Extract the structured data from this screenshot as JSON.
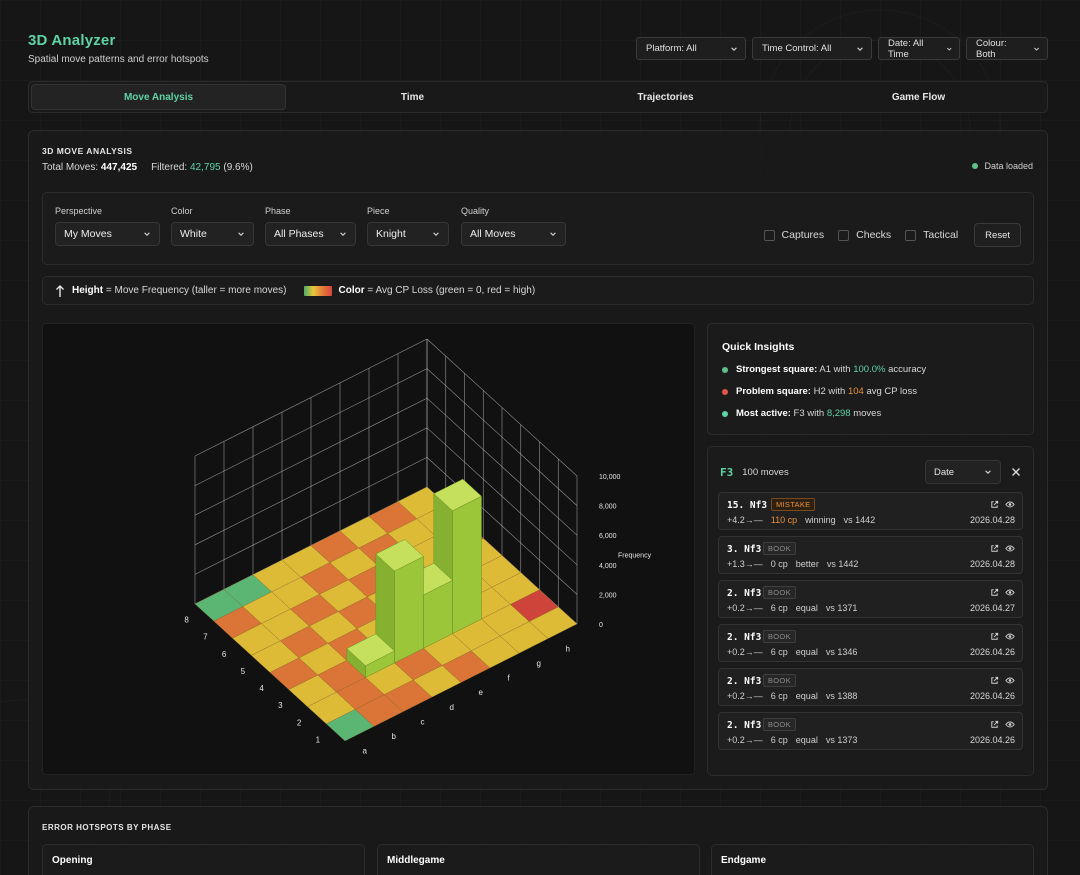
{
  "app": {
    "title": "3D Analyzer",
    "subtitle": "Spatial move patterns and error hotspots"
  },
  "filters": [
    {
      "label": "Platform: All"
    },
    {
      "label": "Time Control: All"
    },
    {
      "label": "Date: All Time"
    },
    {
      "label": "Colour: Both"
    }
  ],
  "tabs": [
    {
      "label": "Move Analysis",
      "active": true
    },
    {
      "label": "Time",
      "active": false
    },
    {
      "label": "Trajectories",
      "active": false
    },
    {
      "label": "Game Flow",
      "active": false
    }
  ],
  "panel": {
    "title": "3D MOVE ANALYSIS",
    "total_label": "Total Moves:",
    "total_value": "447,425",
    "filtered_label": "Filtered:",
    "filtered_value": "42,795",
    "filtered_pct": "(9.6%)",
    "status": "Data loaded"
  },
  "controls": {
    "perspective": {
      "label": "Perspective",
      "value": "My Moves"
    },
    "color": {
      "label": "Color",
      "value": "White"
    },
    "phase": {
      "label": "Phase",
      "value": "All Phases"
    },
    "piece": {
      "label": "Piece",
      "value": "Knight"
    },
    "quality": {
      "label": "Quality",
      "value": "All Moves"
    },
    "checks": [
      "Captures",
      "Checks",
      "Tactical"
    ],
    "reset": "Reset"
  },
  "legend": {
    "height_key": "Height",
    "height_desc": "= Move Frequency (taller = more moves)",
    "color_key": "Color",
    "color_desc": "= Avg CP Loss (green = 0, red = high)"
  },
  "chart_data": {
    "type": "bar3d",
    "zlabel": "Frequency",
    "z_ticks": [
      "0",
      "2,000",
      "4,000",
      "6,000",
      "8,000",
      "10,000"
    ],
    "zlim": [
      0,
      10000
    ],
    "files": [
      "a",
      "b",
      "c",
      "d",
      "e",
      "f",
      "g",
      "h"
    ],
    "ranks": [
      "1",
      "2",
      "3",
      "4",
      "5",
      "6",
      "7",
      "8"
    ],
    "tall_bars": [
      {
        "square": "F3",
        "value": 8298
      },
      {
        "square": "D3",
        "value": 6200
      },
      {
        "square": "E3",
        "value": 3600
      },
      {
        "square": "C3",
        "value": 800
      }
    ],
    "colors": {
      "green": "#5fbf7a",
      "yellow": "#e8c53a",
      "orange": "#e57a3a",
      "red": "#d9463d"
    }
  },
  "insights": {
    "title": "Quick Insights",
    "items": [
      {
        "key": "Strongest square:",
        "pre": "A1 with",
        "value": "100.0%",
        "post": "accuracy",
        "color": "#5fd3a6",
        "dot": "#5fbf8a"
      },
      {
        "key": "Problem square:",
        "pre": "H2 with",
        "value": "104",
        "post": "avg CP loss",
        "color": "#e8923a",
        "dot": "#e0584a"
      },
      {
        "key": "Most active:",
        "pre": "F3 with",
        "value": "8,298",
        "post": "moves",
        "color": "#5fd3a6",
        "dot": "#5fd3a6"
      }
    ]
  },
  "moves": {
    "square": "F3",
    "count": "100 moves",
    "sort": "Date",
    "items": [
      {
        "move": "15. Nf3",
        "badge": "MISTAKE",
        "badge_type": "mistake",
        "eval": "+4.2→—",
        "cp": "110 cp",
        "result": "winning",
        "opp": "vs 1442",
        "date": "2026.04.28"
      },
      {
        "move": "3. Nf3",
        "badge": "BOOK",
        "badge_type": "book",
        "eval": "+1.3→—",
        "cp": "0 cp",
        "result": "better",
        "opp": "vs 1442",
        "date": "2026.04.28"
      },
      {
        "move": "2. Nf3",
        "badge": "BOOK",
        "badge_type": "book",
        "eval": "+0.2→—",
        "cp": "6 cp",
        "result": "equal",
        "opp": "vs 1371",
        "date": "2026.04.27"
      },
      {
        "move": "2. Nf3",
        "badge": "BOOK",
        "badge_type": "book",
        "eval": "+0.2→—",
        "cp": "6 cp",
        "result": "equal",
        "opp": "vs 1346",
        "date": "2026.04.26"
      },
      {
        "move": "2. Nf3",
        "badge": "BOOK",
        "badge_type": "book",
        "eval": "+0.2→—",
        "cp": "6 cp",
        "result": "equal",
        "opp": "vs 1388",
        "date": "2026.04.26"
      },
      {
        "move": "2. Nf3",
        "badge": "BOOK",
        "badge_type": "book",
        "eval": "+0.2→—",
        "cp": "6 cp",
        "result": "equal",
        "opp": "vs 1373",
        "date": "2026.04.26"
      }
    ]
  },
  "hotspots": {
    "title": "ERROR HOTSPOTS BY PHASE",
    "phases": [
      "Opening",
      "Middlegame",
      "Endgame"
    ]
  }
}
